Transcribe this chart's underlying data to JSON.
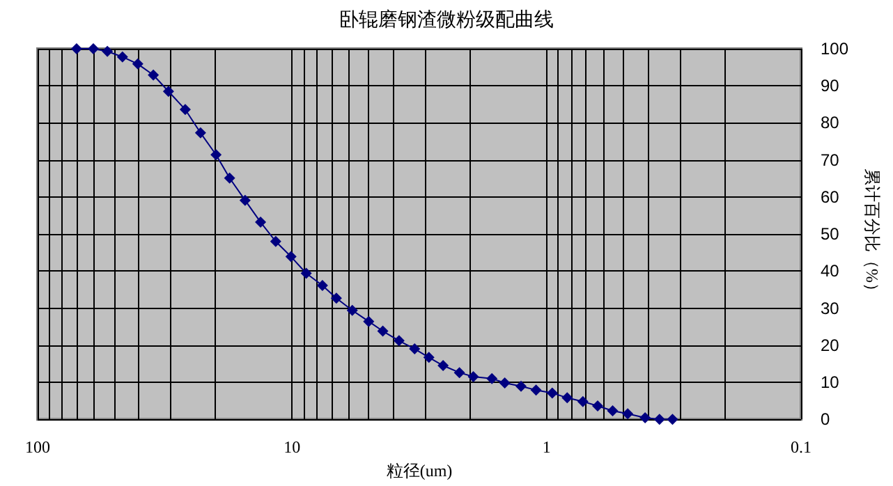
{
  "chart_data": {
    "type": "line",
    "title": "卧辊磨钢渣微粉级配曲线",
    "xlabel": "粒径(um)",
    "ylabel": "累计百分比（%）",
    "x": [
      70.3,
      60.4,
      53.2,
      46.4,
      40.4,
      35.1,
      30.6,
      26.3,
      22.9,
      19.9,
      17.6,
      15.3,
      13.3,
      11.6,
      10.1,
      8.8,
      7.6,
      6.7,
      5.8,
      5.0,
      4.4,
      3.8,
      3.3,
      2.9,
      2.55,
      2.2,
      1.94,
      1.64,
      1.46,
      1.26,
      1.1,
      0.95,
      0.83,
      0.72,
      0.63,
      0.55,
      0.48,
      0.41,
      0.36,
      0.32
    ],
    "series": [
      {
        "color": "#000080",
        "values": [
          100,
          100,
          99.3,
          97.8,
          95.9,
          92.9,
          88.5,
          83.6,
          77.3,
          71.4,
          65.1,
          59.1,
          53.2,
          48.0,
          43.9,
          39.4,
          36.1,
          32.7,
          29.4,
          26.4,
          23.8,
          21.2,
          19.0,
          16.7,
          14.5,
          12.6,
          11.5,
          11.0,
          9.8,
          8.9,
          7.9,
          7.1,
          5.8,
          4.8,
          3.6,
          2.3,
          1.5,
          0.4,
          0,
          0
        ]
      }
    ],
    "log": "x",
    "xlim": [
      100,
      0.1
    ],
    "xticks": [
      100,
      {
        "value": 90,
        "label": null
      },
      {
        "value": 80,
        "label": null
      },
      {
        "value": 70,
        "label": null
      },
      {
        "value": 60,
        "label": null
      },
      {
        "value": 50,
        "label": null
      },
      {
        "value": 40,
        "label": null
      },
      {
        "value": 30,
        "label": null
      },
      {
        "value": 20,
        "label": null
      },
      10,
      {
        "value": 9,
        "label": null
      },
      {
        "value": 8,
        "label": null
      },
      {
        "value": 7,
        "label": null
      },
      {
        "value": 6,
        "label": null
      },
      {
        "value": 5,
        "label": null
      },
      {
        "value": 4,
        "label": null
      },
      {
        "value": 3,
        "label": null
      },
      {
        "value": 2,
        "label": null
      },
      1,
      {
        "value": 0.9,
        "label": null
      },
      {
        "value": 0.8,
        "label": null
      },
      {
        "value": 0.7,
        "label": null
      },
      {
        "value": 0.6,
        "label": null
      },
      {
        "value": 0.5,
        "label": null
      },
      {
        "value": 0.4,
        "label": null
      },
      {
        "value": 0.3,
        "label": null
      },
      {
        "value": 0.2,
        "label": null
      },
      0.1
    ],
    "ylim": [
      0,
      100
    ],
    "yticks": [
      0,
      10,
      20,
      30,
      40,
      50,
      60,
      70,
      80,
      90,
      100
    ],
    "grid": true,
    "marker": "diamond",
    "line_style": "solid"
  }
}
